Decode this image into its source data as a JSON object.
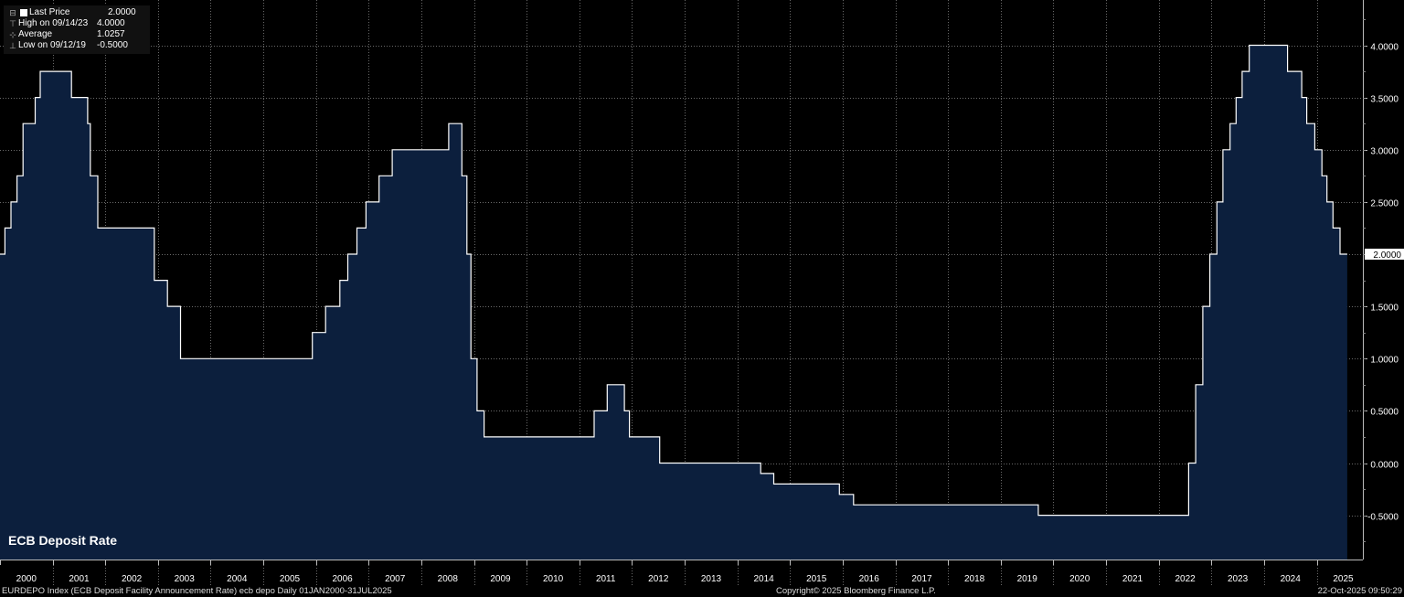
{
  "chart_data": {
    "type": "line",
    "title": "ECB Deposit Rate",
    "colors": {
      "line": "#ffffff",
      "fill": "#0c1f3d",
      "grid": "#6a6a6a",
      "background": "#000000"
    },
    "ylim": [
      -0.9,
      4.45
    ],
    "y_ticks": [
      "4.0000",
      "3.5000",
      "3.0000",
      "2.5000",
      "2.0000",
      "1.5000",
      "1.0000",
      "0.5000",
      "0.0000",
      "-0.5000"
    ],
    "x_ticks": [
      "2000",
      "2001",
      "2002",
      "2003",
      "2004",
      "2005",
      "2006",
      "2007",
      "2008",
      "2009",
      "2010",
      "2011",
      "2012",
      "2013",
      "2014",
      "2015",
      "2016",
      "2017",
      "2018",
      "2019",
      "2020",
      "2021",
      "2022",
      "2023",
      "2024",
      "2025"
    ],
    "last_value_label": "2.0000",
    "grid": true,
    "series": [
      {
        "steps": [
          [
            "2000-01-01",
            2.0
          ],
          [
            "2000-02-04",
            2.25
          ],
          [
            "2000-03-17",
            2.5
          ],
          [
            "2000-04-28",
            2.75
          ],
          [
            "2000-06-09",
            3.25
          ],
          [
            "2000-09-01",
            3.5
          ],
          [
            "2000-10-06",
            3.75
          ],
          [
            "2001-05-11",
            3.5
          ],
          [
            "2001-08-31",
            3.25
          ],
          [
            "2001-09-18",
            2.75
          ],
          [
            "2001-11-09",
            2.25
          ],
          [
            "2002-12-06",
            1.75
          ],
          [
            "2003-03-07",
            1.5
          ],
          [
            "2003-06-06",
            1.0
          ],
          [
            "2005-12-06",
            1.25
          ],
          [
            "2006-03-08",
            1.5
          ],
          [
            "2006-06-15",
            1.75
          ],
          [
            "2006-08-09",
            2.0
          ],
          [
            "2006-10-11",
            2.25
          ],
          [
            "2006-12-13",
            2.5
          ],
          [
            "2007-03-14",
            2.75
          ],
          [
            "2007-06-13",
            3.0
          ],
          [
            "2008-07-09",
            3.25
          ],
          [
            "2008-10-08",
            2.75
          ],
          [
            "2008-11-12",
            2.0
          ],
          [
            "2008-12-10",
            1.0
          ],
          [
            "2009-01-21",
            0.5
          ],
          [
            "2009-03-11",
            0.25
          ],
          [
            "2011-04-13",
            0.5
          ],
          [
            "2011-07-13",
            0.75
          ],
          [
            "2011-11-09",
            0.5
          ],
          [
            "2011-12-14",
            0.25
          ],
          [
            "2012-07-11",
            0.0
          ],
          [
            "2014-06-11",
            -0.1
          ],
          [
            "2014-09-10",
            -0.2
          ],
          [
            "2015-12-09",
            -0.3
          ],
          [
            "2016-03-16",
            -0.4
          ],
          [
            "2019-09-18",
            -0.5
          ],
          [
            "2022-07-27",
            0.0
          ],
          [
            "2022-09-14",
            0.75
          ],
          [
            "2022-11-02",
            1.5
          ],
          [
            "2022-12-21",
            2.0
          ],
          [
            "2023-02-08",
            2.5
          ],
          [
            "2023-03-22",
            3.0
          ],
          [
            "2023-05-10",
            3.25
          ],
          [
            "2023-06-21",
            3.5
          ],
          [
            "2023-08-02",
            3.75
          ],
          [
            "2023-09-20",
            4.0
          ],
          [
            "2024-06-12",
            3.75
          ],
          [
            "2024-09-18",
            3.5
          ],
          [
            "2024-10-23",
            3.25
          ],
          [
            "2024-12-18",
            3.0
          ],
          [
            "2025-02-05",
            2.75
          ],
          [
            "2025-03-12",
            2.5
          ],
          [
            "2025-04-23",
            2.25
          ],
          [
            "2025-06-11",
            2.0
          ],
          [
            "2025-07-31",
            2.0
          ]
        ]
      }
    ]
  },
  "legend": {
    "items": [
      {
        "label": "Last Price",
        "value": "2.0000"
      },
      {
        "label": "High on 09/14/23",
        "value": "4.0000"
      },
      {
        "label": "Average",
        "value": "1.0257"
      },
      {
        "label": "Low on 09/12/19",
        "value": "-0.5000"
      }
    ]
  },
  "footer": {
    "left": "EURDEPO Index (ECB Deposit Facility Announcement Rate) ecb depo Daily 01JAN2000-31JUL2025",
    "center": "Copyright© 2025 Bloomberg Finance L.P.",
    "right": "22-Oct-2025 09:50:29"
  }
}
